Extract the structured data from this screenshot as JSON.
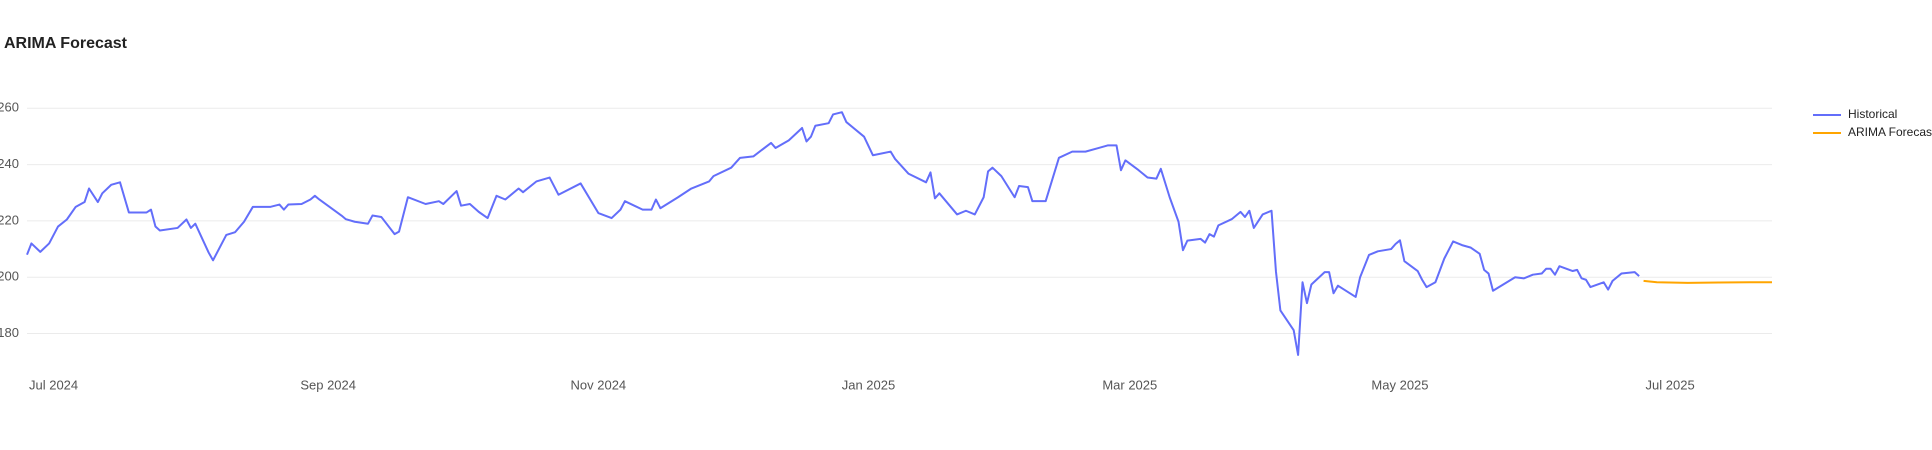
{
  "chart_data": {
    "type": "line",
    "title": "ARIMA Forecast",
    "xlim": [
      "2024-06-25",
      "2025-07-24"
    ],
    "xticks": [
      {
        "value": "2024-07-01",
        "label": "Jul 2024"
      },
      {
        "value": "2024-09-01",
        "label": "Sep 2024"
      },
      {
        "value": "2024-11-01",
        "label": "Nov 2024"
      },
      {
        "value": "2025-01-01",
        "label": "Jan 2025"
      },
      {
        "value": "2025-03-01",
        "label": "Mar 2025"
      },
      {
        "value": "2025-05-01",
        "label": "May 2025"
      },
      {
        "value": "2025-07-01",
        "label": "Jul 2025"
      }
    ],
    "ylim": [
      169,
      264
    ],
    "yticks": [
      180,
      200,
      220,
      240,
      260
    ],
    "grid": true,
    "legend": "top-right",
    "series": [
      {
        "name": "Historical",
        "color": "#636efa",
        "x": [
          "2024-06-25",
          "2024-06-26",
          "2024-06-28",
          "2024-06-30",
          "2024-07-02",
          "2024-07-04",
          "2024-07-06",
          "2024-07-08",
          "2024-07-09",
          "2024-07-11",
          "2024-07-12",
          "2024-07-14",
          "2024-07-16",
          "2024-07-18",
          "2024-07-22",
          "2024-07-23",
          "2024-07-24",
          "2024-07-25",
          "2024-07-29",
          "2024-07-31",
          "2024-08-01",
          "2024-08-02",
          "2024-08-05",
          "2024-08-06",
          "2024-08-09",
          "2024-08-11",
          "2024-08-13",
          "2024-08-15",
          "2024-08-19",
          "2024-08-21",
          "2024-08-22",
          "2024-08-23",
          "2024-08-26",
          "2024-08-28",
          "2024-08-29",
          "2024-08-30",
          "2024-09-04",
          "2024-09-05",
          "2024-09-07",
          "2024-09-10",
          "2024-09-11",
          "2024-09-13",
          "2024-09-16",
          "2024-09-17",
          "2024-09-19",
          "2024-09-23",
          "2024-09-26",
          "2024-09-27",
          "2024-09-30",
          "2024-10-01",
          "2024-10-03",
          "2024-10-05",
          "2024-10-07",
          "2024-10-09",
          "2024-10-11",
          "2024-10-14",
          "2024-10-15",
          "2024-10-18",
          "2024-10-21",
          "2024-10-23",
          "2024-10-28",
          "2024-11-01",
          "2024-11-04",
          "2024-11-06",
          "2024-11-07",
          "2024-11-11",
          "2024-11-13",
          "2024-11-14",
          "2024-11-15",
          "2024-11-19",
          "2024-11-22",
          "2024-11-26",
          "2024-11-27",
          "2024-12-01",
          "2024-12-03",
          "2024-12-06",
          "2024-12-10",
          "2024-12-11",
          "2024-12-14",
          "2024-12-17",
          "2024-12-18",
          "2024-12-19",
          "2024-12-20",
          "2024-12-23",
          "2024-12-24",
          "2024-12-26",
          "2024-12-27",
          "2024-12-31",
          "2025-01-02",
          "2025-01-06",
          "2025-01-07",
          "2025-01-10",
          "2025-01-14",
          "2025-01-15",
          "2025-01-16",
          "2025-01-17",
          "2025-01-21",
          "2025-01-23",
          "2025-01-25",
          "2025-01-27",
          "2025-01-28",
          "2025-01-29",
          "2025-01-31",
          "2025-02-03",
          "2025-02-04",
          "2025-02-06",
          "2025-02-07",
          "2025-02-10",
          "2025-02-13",
          "2025-02-16",
          "2025-02-19",
          "2025-02-22",
          "2025-02-24",
          "2025-02-26",
          "2025-02-27",
          "2025-02-28",
          "2025-03-03",
          "2025-03-05",
          "2025-03-07",
          "2025-03-08",
          "2025-03-10",
          "2025-03-12",
          "2025-03-13",
          "2025-03-14",
          "2025-03-17",
          "2025-03-18",
          "2025-03-19",
          "2025-03-20",
          "2025-03-21",
          "2025-03-24",
          "2025-03-26",
          "2025-03-27",
          "2025-03-28",
          "2025-03-29",
          "2025-03-31",
          "2025-04-02",
          "2025-04-03",
          "2025-04-04",
          "2025-04-07",
          "2025-04-08",
          "2025-04-09",
          "2025-04-10",
          "2025-04-11",
          "2025-04-14",
          "2025-04-15",
          "2025-04-16",
          "2025-04-17",
          "2025-04-21",
          "2025-04-22",
          "2025-04-24",
          "2025-04-26",
          "2025-04-29",
          "2025-04-30",
          "2025-05-01",
          "2025-05-02",
          "2025-05-05",
          "2025-05-06",
          "2025-05-07",
          "2025-05-09",
          "2025-05-11",
          "2025-05-13",
          "2025-05-15",
          "2025-05-17",
          "2025-05-19",
          "2025-05-20",
          "2025-05-21",
          "2025-05-22",
          "2025-05-27",
          "2025-05-29",
          "2025-05-31",
          "2025-06-02",
          "2025-06-03",
          "2025-06-04",
          "2025-06-05",
          "2025-06-06",
          "2025-06-09",
          "2025-06-10",
          "2025-06-11",
          "2025-06-12",
          "2025-06-13",
          "2025-06-16",
          "2025-06-17",
          "2025-06-18",
          "2025-06-20",
          "2025-06-23",
          "2025-06-24"
        ],
        "values": [
          208,
          212,
          209,
          212,
          218,
          220.5,
          225,
          226.7,
          231.5,
          226.7,
          229.8,
          232.8,
          233.7,
          223,
          223,
          224,
          218,
          216.6,
          217.5,
          220.5,
          217.5,
          219,
          208.8,
          206,
          215,
          216,
          219.7,
          225,
          225,
          225.8,
          224,
          225.8,
          226,
          227.6,
          228.9,
          227.6,
          221.9,
          220.6,
          219.7,
          219,
          221.9,
          221.4,
          215.3,
          216.2,
          228.4,
          226,
          227,
          226,
          230.6,
          225.4,
          226,
          223.2,
          221,
          228.9,
          227.6,
          231.5,
          230.2,
          234,
          235.4,
          229.3,
          233.3,
          222.8,
          221,
          224,
          227,
          224,
          224,
          227.6,
          224.5,
          228.4,
          231.5,
          234,
          235.9,
          238.9,
          242.4,
          242.9,
          247.7,
          245.9,
          248.6,
          253,
          248.2,
          249.9,
          253.8,
          254.7,
          257.8,
          258.6,
          255.1,
          249.9,
          243.3,
          244.6,
          242,
          236.8,
          233.7,
          237.2,
          228,
          229.8,
          222.3,
          223.6,
          222.3,
          228.4,
          237.6,
          238.9,
          235.9,
          228.4,
          232.4,
          232,
          227,
          227,
          242.4,
          244.6,
          244.6,
          245.9,
          246.8,
          246.8,
          238,
          241.5,
          238,
          235.4,
          235,
          238.5,
          228.4,
          219.7,
          209.6,
          213,
          213.6,
          212.3,
          215.3,
          214.4,
          218.4,
          220.6,
          223.2,
          221.4,
          223.6,
          217.5,
          222.3,
          223.6,
          202,
          188.2,
          181.2,
          172.4,
          198.2,
          190.8,
          197.4,
          201.8,
          201.8,
          194.3,
          197,
          193,
          200,
          207.9,
          209.2,
          210,
          211.8,
          213.1,
          205.7,
          202.2,
          199.1,
          196.5,
          198.2,
          206.6,
          212.7,
          211.4,
          210.5,
          208.3,
          202.6,
          201.3,
          195.2,
          200,
          199.6,
          200.9,
          201.3,
          203,
          203,
          200.9,
          203.9,
          202.2,
          202.6,
          199.6,
          199.1,
          196.5,
          198.2,
          195.6,
          198.7,
          201.3,
          201.8,
          200.4
        ]
      },
      {
        "name": "ARIMA Forecast",
        "color": "#ffa500",
        "x": [
          "2025-06-25",
          "2025-06-28",
          "2025-07-05",
          "2025-07-12",
          "2025-07-19",
          "2025-07-24"
        ],
        "values": [
          198.7,
          198.2,
          198,
          198.1,
          198.2,
          198.2
        ]
      }
    ]
  }
}
